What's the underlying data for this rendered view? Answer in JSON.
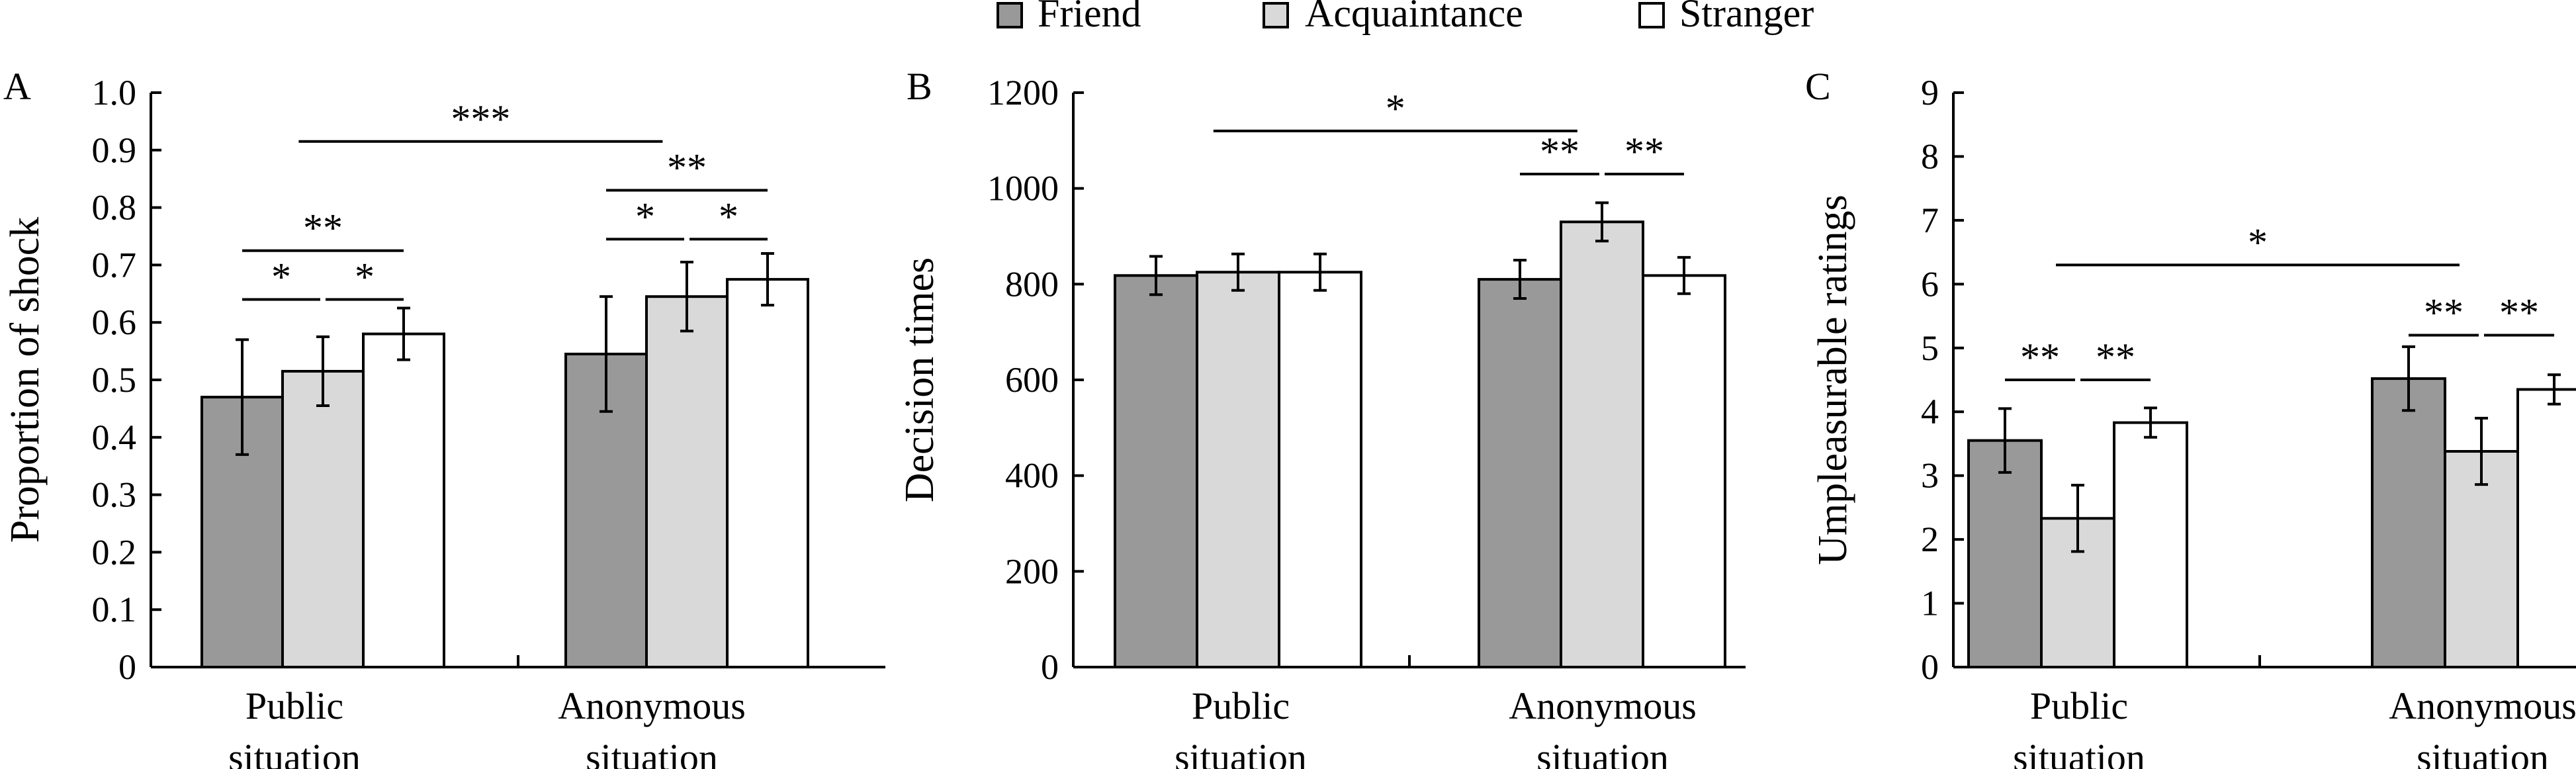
{
  "legend": [
    {
      "label": "Friend",
      "color": "#999999"
    },
    {
      "label": "Acquaintance",
      "color": "#d9d9d9"
    },
    {
      "label": "Stranger",
      "color": "#ffffff"
    }
  ],
  "chart_data": [
    {
      "type": "bar",
      "panel": "A",
      "ylabel": "Proportion of shock",
      "ylim": [
        0,
        1.0
      ],
      "yticks": [
        "0",
        "0.1",
        "0.2",
        "0.3",
        "0.4",
        "0.5",
        "0.6",
        "0.7",
        "0.8",
        "0.9",
        "1.0"
      ],
      "categories": [
        [
          "Public",
          "situation"
        ],
        [
          "Anonymous",
          "situation"
        ]
      ],
      "series": [
        {
          "name": "Friend",
          "values": [
            0.47,
            0.545
          ],
          "errors": [
            0.1,
            0.1
          ]
        },
        {
          "name": "Acquaintance",
          "values": [
            0.515,
            0.645
          ],
          "errors": [
            0.06,
            0.06
          ]
        },
        {
          "name": "Stranger",
          "values": [
            0.58,
            0.675
          ],
          "errors": [
            0.045,
            0.045
          ]
        }
      ],
      "significance": [
        {
          "group": 0,
          "from": 0,
          "to": 1,
          "y": 0.64,
          "label": "*"
        },
        {
          "group": 0,
          "from": 1,
          "to": 2,
          "y": 0.64,
          "label": "*"
        },
        {
          "group": 0,
          "from": 0,
          "to": 2,
          "y": 0.725,
          "label": "**"
        },
        {
          "group": 1,
          "from": 0,
          "to": 1,
          "y": 0.745,
          "label": "*"
        },
        {
          "group": 1,
          "from": 1,
          "to": 2,
          "y": 0.745,
          "label": "*"
        },
        {
          "group": 1,
          "from": 0,
          "to": 2,
          "y": 0.83,
          "label": "**"
        },
        {
          "cross": true,
          "fromCat": 0,
          "toCat": 1,
          "y": 0.915,
          "label": "***"
        }
      ]
    },
    {
      "type": "bar",
      "panel": "B",
      "ylabel": "Decision times",
      "ylim": [
        0,
        1200
      ],
      "yticks": [
        "0",
        "200",
        "400",
        "600",
        "800",
        "1000",
        "1200"
      ],
      "categories": [
        [
          "Public",
          "situation"
        ],
        [
          "Anonymous",
          "situation"
        ]
      ],
      "series": [
        {
          "name": "Friend",
          "values": [
            818,
            810
          ],
          "errors": [
            40,
            40
          ]
        },
        {
          "name": "Acquaintance",
          "values": [
            825,
            930
          ],
          "errors": [
            38,
            40
          ]
        },
        {
          "name": "Stranger",
          "values": [
            825,
            818
          ],
          "errors": [
            38,
            38
          ]
        }
      ],
      "significance": [
        {
          "group": 1,
          "from": 0,
          "to": 1,
          "y": 1030,
          "label": "**"
        },
        {
          "group": 1,
          "from": 1,
          "to": 2,
          "y": 1030,
          "label": "**"
        },
        {
          "cross": true,
          "fromCat": 0,
          "toCat": 1,
          "y": 1120,
          "label": "*"
        }
      ]
    },
    {
      "type": "bar",
      "panel": "C",
      "ylabel": "Umpleasurable ratings",
      "ylim": [
        0,
        9
      ],
      "yticks": [
        "0",
        "1",
        "2",
        "3",
        "4",
        "5",
        "6",
        "7",
        "8",
        "9"
      ],
      "categories": [
        [
          "Public",
          "situation"
        ],
        [
          "Anonymous",
          "situation"
        ]
      ],
      "series": [
        {
          "name": "Friend",
          "values": [
            3.55,
            4.52
          ],
          "errors": [
            0.5,
            0.5
          ]
        },
        {
          "name": "Acquaintance",
          "values": [
            2.33,
            3.38
          ],
          "errors": [
            0.52,
            0.52
          ]
        },
        {
          "name": "Stranger",
          "values": [
            3.83,
            4.35
          ],
          "errors": [
            0.23,
            0.23
          ]
        }
      ],
      "significance": [
        {
          "group": 0,
          "from": 0,
          "to": 1,
          "y": 4.5,
          "label": "**"
        },
        {
          "group": 0,
          "from": 1,
          "to": 2,
          "y": 4.5,
          "label": "**"
        },
        {
          "group": 1,
          "from": 0,
          "to": 1,
          "y": 5.2,
          "label": "**"
        },
        {
          "group": 1,
          "from": 1,
          "to": 2,
          "y": 5.2,
          "label": "**"
        },
        {
          "cross": true,
          "fromCat": 0,
          "toCat": 1,
          "y": 6.3,
          "label": "*"
        }
      ]
    }
  ]
}
